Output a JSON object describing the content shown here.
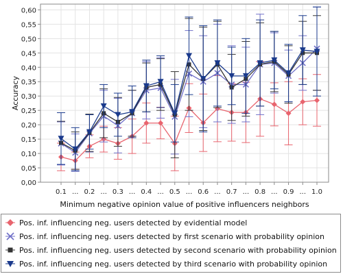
{
  "chart_data": {
    "type": "line",
    "xlabel": "Minimum negative opinion value of positive influencers neighbors",
    "ylabel": "Accuracy",
    "ylim": [
      0,
      0.62
    ],
    "yticks": [
      "0,00",
      "0,05",
      "0,10",
      "0,15",
      "0,20",
      "0,25",
      "0,30",
      "0,35",
      "0,40",
      "0,45",
      "0,50",
      "0,55",
      "0,60"
    ],
    "categories": [
      "0.1",
      "...",
      "0.2",
      "...",
      "0.3",
      "...",
      "0.4",
      "...",
      "0.5",
      "...",
      "0.6",
      "...",
      "0.7",
      "...",
      "0.8",
      "...",
      "0.9",
      "...",
      "1.0"
    ],
    "grid": true,
    "error_bars": true,
    "legend_position": "bottom",
    "series": [
      {
        "name": "Pos. inf. influencing neg. users detected by evidential model",
        "color": "#e8646e",
        "marker": "diamond",
        "values": [
          0.088,
          0.075,
          0.125,
          0.15,
          0.135,
          0.16,
          0.206,
          0.206,
          0.135,
          0.258,
          0.207,
          0.256,
          0.243,
          0.243,
          0.29,
          0.271,
          0.24,
          0.28,
          0.285
        ],
        "errors": [
          0.048,
          0.03,
          0.04,
          0.045,
          0.055,
          0.06,
          0.07,
          0.055,
          0.095,
          0.085,
          0.1,
          0.115,
          0.1,
          0.105,
          0.13,
          0.075,
          0.11,
          0.08,
          0.09
        ]
      },
      {
        "name": "Pos. inf. influencing neg. users detected by first scenario with probability opinion",
        "color": "#7070c8",
        "marker": "x",
        "values": [
          0.135,
          0.103,
          0.17,
          0.23,
          0.197,
          0.24,
          0.32,
          0.328,
          0.228,
          0.378,
          0.35,
          0.38,
          0.34,
          0.34,
          0.41,
          0.415,
          0.37,
          0.415,
          0.465
        ],
        "errors": [
          0.075,
          0.065,
          0.065,
          0.09,
          0.095,
          0.08,
          0.1,
          0.105,
          0.13,
          0.15,
          0.16,
          0.17,
          0.135,
          0.13,
          0.175,
          0.105,
          0.09,
          0.095,
          0.145
        ]
      },
      {
        "name": "Pos. inf. influencing neg. users detected by second scenario with probability opinion",
        "color": "#333333",
        "marker": "square",
        "values": [
          0.137,
          0.11,
          0.172,
          0.24,
          0.21,
          0.24,
          0.33,
          0.34,
          0.235,
          0.41,
          0.36,
          0.41,
          0.33,
          0.36,
          0.41,
          0.42,
          0.375,
          0.45,
          0.45
        ],
        "errors": [
          0.075,
          0.065,
          0.065,
          0.085,
          0.085,
          0.08,
          0.085,
          0.09,
          0.15,
          0.16,
          0.18,
          0.15,
          0.115,
          0.13,
          0.145,
          0.105,
          0.1,
          0.11,
          0.13
        ]
      },
      {
        "name": "Pos. inf. influencing neg. users detected by third scenario with probability opinion",
        "color": "#1a3a8c",
        "marker": "triangle-down",
        "values": [
          0.152,
          0.115,
          0.175,
          0.265,
          0.235,
          0.245,
          0.335,
          0.35,
          0.24,
          0.44,
          0.36,
          0.415,
          0.37,
          0.37,
          0.415,
          0.425,
          0.38,
          0.46,
          0.455
        ],
        "errors": [
          0.09,
          0.075,
          0.06,
          0.075,
          0.075,
          0.09,
          0.09,
          0.09,
          0.1,
          0.135,
          0.185,
          0.15,
          0.1,
          0.13,
          0.15,
          0.1,
          0.1,
          0.12,
          0.155
        ]
      }
    ]
  }
}
